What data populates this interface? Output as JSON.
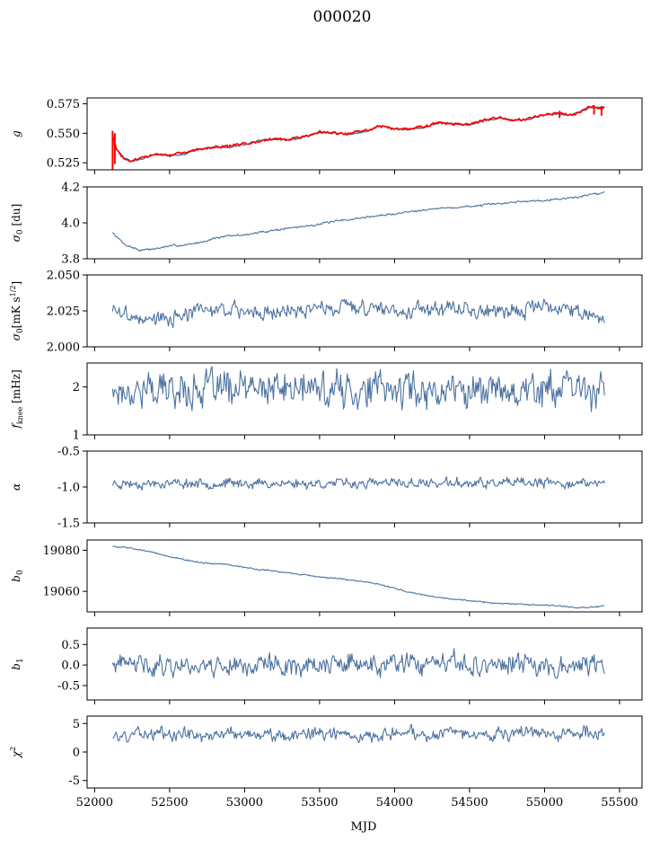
{
  "figure": {
    "title": "000020",
    "xlabel": "MJD",
    "xlim": [
      51950,
      55650
    ],
    "xticks": [
      52000,
      52500,
      53000,
      53500,
      54000,
      54500,
      55000,
      55500
    ],
    "colors": {
      "series": "#4c72a0",
      "reference": "#ff0000",
      "axis": "#000000"
    }
  },
  "chart_data": [
    {
      "type": "line",
      "key": "g",
      "ylabel": "g",
      "ylim": [
        0.519,
        0.58
      ],
      "yticks": [
        0.525,
        0.55,
        0.575
      ],
      "x_range": [
        52120,
        55400
      ],
      "series": [
        {
          "color": "#4c72a0",
          "width": 1.4,
          "x": [
            52120,
            52150,
            52200,
            52250,
            52300,
            52400,
            52500,
            52600,
            52700,
            52800,
            52900,
            53000,
            53100,
            53200,
            53300,
            53400,
            53500,
            53600,
            53700,
            53800,
            53900,
            54000,
            54100,
            54200,
            54300,
            54400,
            54500,
            54600,
            54700,
            54800,
            54900,
            55000,
            55100,
            55200,
            55300,
            55400
          ],
          "y": [
            0.543,
            0.536,
            0.529,
            0.526,
            0.528,
            0.532,
            0.531,
            0.532,
            0.537,
            0.538,
            0.538,
            0.54,
            0.544,
            0.545,
            0.544,
            0.547,
            0.551,
            0.55,
            0.549,
            0.551,
            0.556,
            0.554,
            0.553,
            0.555,
            0.559,
            0.558,
            0.557,
            0.561,
            0.563,
            0.561,
            0.562,
            0.566,
            0.566,
            0.566,
            0.572,
            0.572
          ],
          "noise": 0.0005,
          "seed": 11
        },
        {
          "color": "#ff0000",
          "width": 1.6,
          "x": [
            52120,
            52150,
            52200,
            52250,
            52300,
            52400,
            52500,
            52600,
            52700,
            52800,
            52900,
            53000,
            53100,
            53200,
            53300,
            53400,
            53500,
            53600,
            53700,
            53800,
            53900,
            54000,
            54100,
            54200,
            54300,
            54400,
            54500,
            54600,
            54700,
            54800,
            54900,
            55000,
            55100,
            55200,
            55300,
            55400
          ],
          "y": [
            0.548,
            0.535,
            0.528,
            0.526,
            0.529,
            0.532,
            0.532,
            0.533,
            0.537,
            0.538,
            0.539,
            0.541,
            0.544,
            0.545,
            0.545,
            0.547,
            0.551,
            0.55,
            0.55,
            0.552,
            0.556,
            0.554,
            0.554,
            0.556,
            0.559,
            0.558,
            0.558,
            0.561,
            0.563,
            0.561,
            0.563,
            0.566,
            0.567,
            0.566,
            0.573,
            0.572
          ],
          "noise": 0.0008,
          "seed": 29,
          "spikes": [
            [
              52120,
              0.519,
              0.552
            ],
            [
              52135,
              0.524,
              0.55
            ],
            [
              55100,
              0.563,
              0.569
            ],
            [
              55330,
              0.566,
              0.574
            ],
            [
              55380,
              0.565,
              0.573
            ]
          ]
        }
      ]
    },
    {
      "type": "line",
      "key": "sigma0",
      "ylabel": "σ₀ [du]",
      "ylim": [
        3.8,
        4.2
      ],
      "yticks": [
        3.8,
        4.0,
        4.2
      ],
      "x_range": [
        52120,
        55400
      ],
      "series": [
        {
          "color": "#4c72a0",
          "width": 1.1,
          "x": [
            52120,
            52200,
            52300,
            52400,
            52500,
            52600,
            52700,
            52800,
            52900,
            53000,
            53200,
            53400,
            53600,
            53800,
            54000,
            54200,
            54400,
            54600,
            54800,
            55000,
            55200,
            55300,
            55400
          ],
          "y": [
            3.945,
            3.88,
            3.848,
            3.855,
            3.87,
            3.877,
            3.89,
            3.915,
            3.927,
            3.933,
            3.96,
            3.981,
            4.007,
            4.03,
            4.05,
            4.075,
            4.085,
            4.098,
            4.116,
            4.127,
            4.14,
            4.157,
            4.17
          ],
          "noise": 0.004,
          "seed": 7
        }
      ]
    },
    {
      "type": "line",
      "key": "sigma_unit",
      "ylabel": "σ₀[mK s^1/2]",
      "ylim": [
        2.0,
        2.05
      ],
      "yticks": [
        2.0,
        2.025,
        2.05
      ],
      "x_range": [
        52120,
        55400
      ],
      "series": [
        {
          "color": "#4c72a0",
          "width": 1.1,
          "x": [
            52120,
            52300,
            52500,
            52700,
            52900,
            53100,
            53300,
            53500,
            53700,
            53900,
            54100,
            54300,
            54500,
            54700,
            54900,
            55100,
            55300,
            55400
          ],
          "y": [
            2.026,
            2.02,
            2.019,
            2.025,
            2.026,
            2.024,
            2.025,
            2.027,
            2.028,
            2.027,
            2.026,
            2.027,
            2.026,
            2.024,
            2.027,
            2.028,
            2.024,
            2.019
          ],
          "noise": 0.0035,
          "seed": 3
        }
      ]
    },
    {
      "type": "line",
      "key": "fknee",
      "ylabel": "f_knee [mHz]",
      "ylim": [
        1.0,
        2.5
      ],
      "yticks": [
        1,
        2
      ],
      "x_range": [
        52120,
        55400
      ],
      "series": [
        {
          "color": "#4c72a0",
          "width": 1.1,
          "x": [
            52120,
            55400
          ],
          "y": [
            1.95,
            1.95
          ],
          "noise": 0.24,
          "seed": 17
        }
      ]
    },
    {
      "type": "line",
      "key": "alpha",
      "ylabel": "α",
      "ylim": [
        -1.5,
        -0.5
      ],
      "yticks": [
        -1.5,
        -1.0,
        -0.5
      ],
      "x_range": [
        52120,
        55400
      ],
      "series": [
        {
          "color": "#4c72a0",
          "width": 1.1,
          "x": [
            52120,
            55400
          ],
          "y": [
            -0.95,
            -0.95
          ],
          "noise": 0.045,
          "seed": 23
        }
      ]
    },
    {
      "type": "line",
      "key": "b0",
      "ylabel": "b₀",
      "ylim": [
        19050,
        19085
      ],
      "yticks": [
        19060,
        19080
      ],
      "x_range": [
        52120,
        55400
      ],
      "series": [
        {
          "color": "#4c72a0",
          "width": 1.1,
          "x": [
            52120,
            52300,
            52500,
            52700,
            52900,
            53100,
            53300,
            53500,
            53700,
            53900,
            54100,
            54300,
            54500,
            54700,
            54900,
            55100,
            55200,
            55300,
            55400
          ],
          "y": [
            19082,
            19080.5,
            19077,
            19074,
            19073,
            19070.5,
            19069,
            19067,
            19065.5,
            19063.5,
            19059.5,
            19057,
            19055.5,
            19054,
            19053.5,
            19053,
            19052,
            19052.3,
            19052.8
          ],
          "noise": 0.25,
          "seed": 5
        }
      ]
    },
    {
      "type": "line",
      "key": "b1",
      "ylabel": "b₁",
      "ylim": [
        -0.85,
        0.9
      ],
      "yticks": [
        -0.5,
        0.0,
        0.5
      ],
      "x_range": [
        52120,
        55400
      ],
      "series": [
        {
          "color": "#4c72a0",
          "width": 1.1,
          "x": [
            52120,
            55400
          ],
          "y": [
            0.0,
            0.0
          ],
          "noise": 0.17,
          "seed": 41
        }
      ]
    },
    {
      "type": "line",
      "key": "chi2",
      "ylabel": "χ²",
      "ylim": [
        -6.3,
        6.3
      ],
      "yticks": [
        -5,
        0,
        5
      ],
      "x_range": [
        52120,
        55400
      ],
      "series": [
        {
          "color": "#4c72a0",
          "width": 1.1,
          "x": [
            52120,
            52300,
            52500,
            52700,
            52900,
            53100,
            53300,
            53500,
            53700,
            53900,
            54100,
            54300,
            54500,
            54700,
            54900,
            55100,
            55300,
            55400
          ],
          "y": [
            2.6,
            3.3,
            3.4,
            3.0,
            3.4,
            3.0,
            3.1,
            3.3,
            3.2,
            3.0,
            3.5,
            3.0,
            3.6,
            3.0,
            3.4,
            3.1,
            3.6,
            3.4
          ],
          "noise": 0.75,
          "seed": 59
        }
      ]
    }
  ]
}
